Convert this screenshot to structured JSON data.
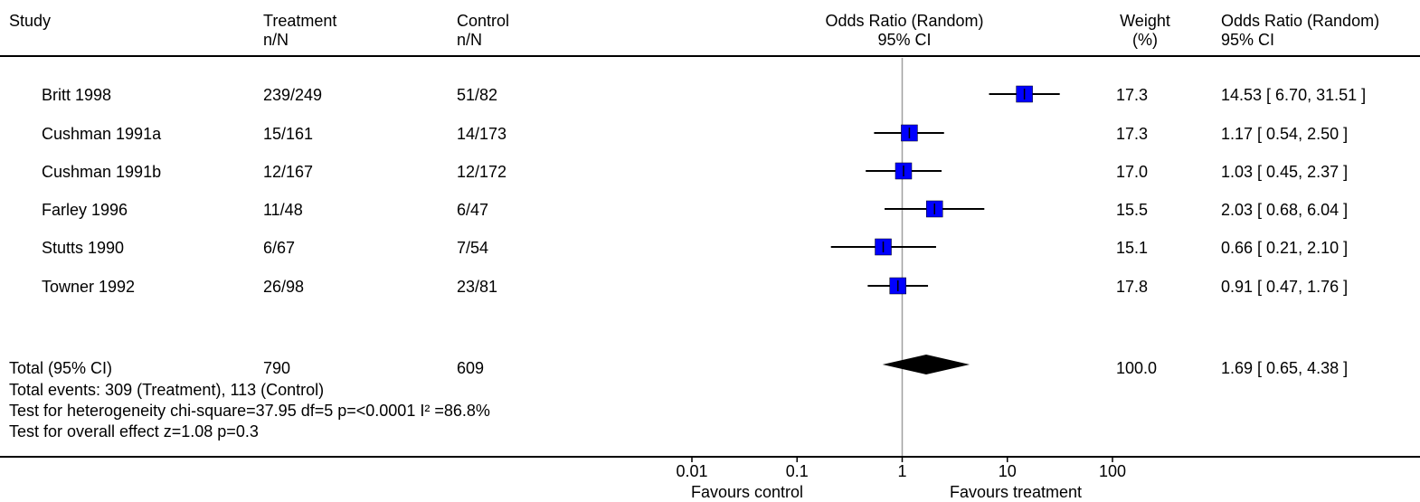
{
  "header": {
    "study": "Study",
    "treatment_l1": "Treatment",
    "treatment_l2": "n/N",
    "control_l1": "Control",
    "control_l2": "n/N",
    "or_l1": "Odds Ratio (Random)",
    "or_l2": "95% CI",
    "weight_l1": "Weight",
    "weight_l2": "(%)",
    "orci_l1": "Odds Ratio (Random)",
    "orci_l2": "95% CI"
  },
  "chart_data": {
    "type": "forest",
    "x_scale": "log",
    "xlim": [
      0.01,
      100
    ],
    "x_ticks": [
      "0.01",
      "0.1",
      "1",
      "10",
      "100"
    ],
    "x_tick_values": [
      0.01,
      0.1,
      1,
      10,
      100
    ],
    "x_left_label": "Favours control",
    "x_right_label": "Favours treatment",
    "marker_color": "#0000ff",
    "studies": [
      {
        "name": "Britt 1998",
        "treatment": "239/249",
        "control": "51/82",
        "or": 14.53,
        "lo": 6.7,
        "hi": 31.51,
        "weight": "17.3",
        "ci_text": "14.53 [ 6.70, 31.51 ]"
      },
      {
        "name": "Cushman 1991a",
        "treatment": "15/161",
        "control": "14/173",
        "or": 1.17,
        "lo": 0.54,
        "hi": 2.5,
        "weight": "17.3",
        "ci_text": "1.17 [ 0.54, 2.50 ]"
      },
      {
        "name": "Cushman 1991b",
        "treatment": "12/167",
        "control": "12/172",
        "or": 1.03,
        "lo": 0.45,
        "hi": 2.37,
        "weight": "17.0",
        "ci_text": "1.03 [ 0.45, 2.37 ]"
      },
      {
        "name": "Farley 1996",
        "treatment": "11/48",
        "control": "6/47",
        "or": 2.03,
        "lo": 0.68,
        "hi": 6.04,
        "weight": "15.5",
        "ci_text": "2.03 [ 0.68, 6.04 ]"
      },
      {
        "name": "Stutts 1990",
        "treatment": "6/67",
        "control": "7/54",
        "or": 0.66,
        "lo": 0.21,
        "hi": 2.1,
        "weight": "15.1",
        "ci_text": "0.66 [ 0.21, 2.10 ]"
      },
      {
        "name": "Towner 1992",
        "treatment": "26/98",
        "control": "23/81",
        "or": 0.91,
        "lo": 0.47,
        "hi": 1.76,
        "weight": "17.8",
        "ci_text": "0.91 [ 0.47, 1.76 ]"
      }
    ],
    "total": {
      "label": "Total (95% CI)",
      "treatment": "790",
      "control": "609",
      "or": 1.69,
      "lo": 0.65,
      "hi": 4.38,
      "weight": "100.0",
      "ci_text": "1.69 [ 0.65, 4.38 ]"
    },
    "footnotes": {
      "events": "Total events: 309 (Treatment), 113 (Control)",
      "heterogeneity": "Test for heterogeneity chi-square=37.95 df=5 p=<0.0001 I² =86.8%",
      "overall": "Test for overall effect z=1.08  p=0.3"
    }
  }
}
